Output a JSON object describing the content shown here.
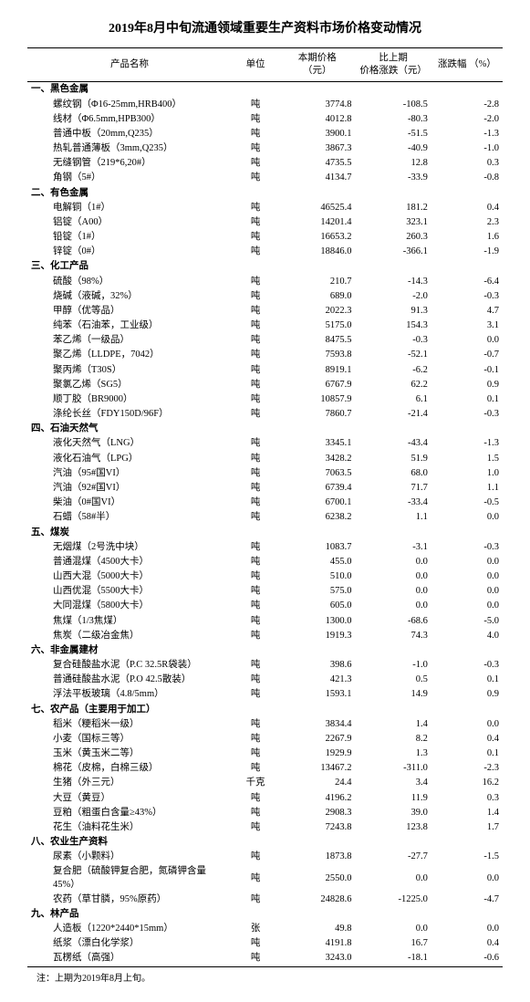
{
  "title": "2019年8月中旬流通领域重要生产资料市场价格变动情况",
  "columns": {
    "name": "产品名称",
    "unit": "单位",
    "price": "本期价格\n（元）",
    "delta": "比上期\n价格涨跌（元）",
    "pct": "涨跌幅 （%）"
  },
  "note": "注：上期为2019年8月上旬。",
  "sections": [
    {
      "header": "一、黑色金属",
      "rows": [
        {
          "name": "螺纹钢（Φ16-25mm,HRB400）",
          "unit": "吨",
          "price": "3774.8",
          "delta": "-108.5",
          "pct": "-2.8"
        },
        {
          "name": "线材（Φ6.5mm,HPB300）",
          "unit": "吨",
          "price": "4012.8",
          "delta": "-80.3",
          "pct": "-2.0"
        },
        {
          "name": "普通中板（20mm,Q235）",
          "unit": "吨",
          "price": "3900.1",
          "delta": "-51.5",
          "pct": "-1.3"
        },
        {
          "name": "热轧普通薄板（3mm,Q235）",
          "unit": "吨",
          "price": "3867.3",
          "delta": "-40.9",
          "pct": "-1.0"
        },
        {
          "name": "无缝钢管（219*6,20#）",
          "unit": "吨",
          "price": "4735.5",
          "delta": "12.8",
          "pct": "0.3"
        },
        {
          "name": "角钢（5#）",
          "unit": "吨",
          "price": "4134.7",
          "delta": "-33.9",
          "pct": "-0.8"
        }
      ]
    },
    {
      "header": "二、有色金属",
      "rows": [
        {
          "name": "电解铜（1#）",
          "unit": "吨",
          "price": "46525.4",
          "delta": "181.2",
          "pct": "0.4"
        },
        {
          "name": "铝锭（A00）",
          "unit": "吨",
          "price": "14201.4",
          "delta": "323.1",
          "pct": "2.3"
        },
        {
          "name": "铅锭（1#）",
          "unit": "吨",
          "price": "16653.2",
          "delta": "260.3",
          "pct": "1.6"
        },
        {
          "name": "锌锭（0#）",
          "unit": "吨",
          "price": "18846.0",
          "delta": "-366.1",
          "pct": "-1.9"
        }
      ]
    },
    {
      "header": "三、化工产品",
      "rows": [
        {
          "name": "硫酸（98%）",
          "unit": "吨",
          "price": "210.7",
          "delta": "-14.3",
          "pct": "-6.4"
        },
        {
          "name": "烧碱（液碱，32%）",
          "unit": "吨",
          "price": "689.0",
          "delta": "-2.0",
          "pct": "-0.3"
        },
        {
          "name": "甲醇（优等品）",
          "unit": "吨",
          "price": "2022.3",
          "delta": "91.3",
          "pct": "4.7"
        },
        {
          "name": "纯苯（石油苯，工业级）",
          "unit": "吨",
          "price": "5175.0",
          "delta": "154.3",
          "pct": "3.1"
        },
        {
          "name": "苯乙烯（一级品）",
          "unit": "吨",
          "price": "8475.5",
          "delta": "-0.3",
          "pct": "0.0"
        },
        {
          "name": "聚乙烯（LLDPE，7042）",
          "unit": "吨",
          "price": "7593.8",
          "delta": "-52.1",
          "pct": "-0.7"
        },
        {
          "name": "聚丙烯（T30S）",
          "unit": "吨",
          "price": "8919.1",
          "delta": "-6.2",
          "pct": "-0.1"
        },
        {
          "name": "聚氯乙烯（SG5）",
          "unit": "吨",
          "price": "6767.9",
          "delta": "62.2",
          "pct": "0.9"
        },
        {
          "name": "顺丁胶（BR9000）",
          "unit": "吨",
          "price": "10857.9",
          "delta": "6.1",
          "pct": "0.1"
        },
        {
          "name": "涤纶长丝（FDY150D/96F）",
          "unit": "吨",
          "price": "7860.7",
          "delta": "-21.4",
          "pct": "-0.3"
        }
      ]
    },
    {
      "header": "四、石油天然气",
      "rows": [
        {
          "name": "液化天然气（LNG）",
          "unit": "吨",
          "price": "3345.1",
          "delta": "-43.4",
          "pct": "-1.3"
        },
        {
          "name": "液化石油气（LPG）",
          "unit": "吨",
          "price": "3428.2",
          "delta": "51.9",
          "pct": "1.5"
        },
        {
          "name": "汽油（95#国VI）",
          "unit": "吨",
          "price": "7063.5",
          "delta": "68.0",
          "pct": "1.0"
        },
        {
          "name": "汽油（92#国VI）",
          "unit": "吨",
          "price": "6739.4",
          "delta": "71.7",
          "pct": "1.1"
        },
        {
          "name": "柴油（0#国VI）",
          "unit": "吨",
          "price": "6700.1",
          "delta": "-33.4",
          "pct": "-0.5"
        },
        {
          "name": "石蜡（58#半）",
          "unit": "吨",
          "price": "6238.2",
          "delta": "1.1",
          "pct": "0.0"
        }
      ]
    },
    {
      "header": "五、煤炭",
      "rows": [
        {
          "name": "无烟煤（2号洗中块）",
          "unit": "吨",
          "price": "1083.7",
          "delta": "-3.1",
          "pct": "-0.3"
        },
        {
          "name": "普通混煤（4500大卡）",
          "unit": "吨",
          "price": "455.0",
          "delta": "0.0",
          "pct": "0.0"
        },
        {
          "name": "山西大混（5000大卡）",
          "unit": "吨",
          "price": "510.0",
          "delta": "0.0",
          "pct": "0.0"
        },
        {
          "name": "山西优混（5500大卡）",
          "unit": "吨",
          "price": "575.0",
          "delta": "0.0",
          "pct": "0.0"
        },
        {
          "name": "大同混煤（5800大卡）",
          "unit": "吨",
          "price": "605.0",
          "delta": "0.0",
          "pct": "0.0"
        },
        {
          "name": "焦煤（1/3焦煤）",
          "unit": "吨",
          "price": "1300.0",
          "delta": "-68.6",
          "pct": "-5.0"
        },
        {
          "name": "焦炭（二级冶金焦）",
          "unit": "吨",
          "price": "1919.3",
          "delta": "74.3",
          "pct": "4.0"
        }
      ]
    },
    {
      "header": "六、非金属建材",
      "rows": [
        {
          "name": "复合硅酸盐水泥（P.C 32.5R袋装）",
          "unit": "吨",
          "price": "398.6",
          "delta": "-1.0",
          "pct": "-0.3"
        },
        {
          "name": "普通硅酸盐水泥（P.O 42.5散装）",
          "unit": "吨",
          "price": "421.3",
          "delta": "0.5",
          "pct": "0.1"
        },
        {
          "name": "浮法平板玻璃（4.8/5mm）",
          "unit": "吨",
          "price": "1593.1",
          "delta": "14.9",
          "pct": "0.9"
        }
      ]
    },
    {
      "header": "七、农产品（主要用于加工）",
      "rows": [
        {
          "name": "稻米（粳稻米一级）",
          "unit": "吨",
          "price": "3834.4",
          "delta": "1.4",
          "pct": "0.0"
        },
        {
          "name": "小麦（国标三等）",
          "unit": "吨",
          "price": "2267.9",
          "delta": "8.2",
          "pct": "0.4"
        },
        {
          "name": "玉米（黄玉米二等）",
          "unit": "吨",
          "price": "1929.9",
          "delta": "1.3",
          "pct": "0.1"
        },
        {
          "name": "棉花（皮棉，白棉三级）",
          "unit": "吨",
          "price": "13467.2",
          "delta": "-311.0",
          "pct": "-2.3"
        },
        {
          "name": "生猪（外三元）",
          "unit": "千克",
          "price": "24.4",
          "delta": "3.4",
          "pct": "16.2"
        },
        {
          "name": "大豆（黄豆）",
          "unit": "吨",
          "price": "4196.2",
          "delta": "11.9",
          "pct": "0.3"
        },
        {
          "name": "豆粕（粗蛋白含量≥43%）",
          "unit": "吨",
          "price": "2908.3",
          "delta": "39.0",
          "pct": "1.4"
        },
        {
          "name": "花生（油料花生米）",
          "unit": "吨",
          "price": "7243.8",
          "delta": "123.8",
          "pct": "1.7"
        }
      ]
    },
    {
      "header": "八、农业生产资料",
      "rows": [
        {
          "name": "尿素（小颗料）",
          "unit": "吨",
          "price": "1873.8",
          "delta": "-27.7",
          "pct": "-1.5"
        },
        {
          "name": "复合肥（硫酸钾复合肥，氮磷钾含量45%）",
          "unit": "吨",
          "price": "2550.0",
          "delta": "0.0",
          "pct": "0.0"
        },
        {
          "name": "农药（草甘膦，95%原药）",
          "unit": "吨",
          "price": "24828.6",
          "delta": "-1225.0",
          "pct": "-4.7"
        }
      ]
    },
    {
      "header": "九、林产品",
      "rows": [
        {
          "name": "人造板（1220*2440*15mm）",
          "unit": "张",
          "price": "49.8",
          "delta": "0.0",
          "pct": "0.0"
        },
        {
          "name": "纸浆（漂白化学浆）",
          "unit": "吨",
          "price": "4191.8",
          "delta": "16.7",
          "pct": "0.4"
        },
        {
          "name": "瓦楞纸（高强）",
          "unit": "吨",
          "price": "3243.0",
          "delta": "-18.1",
          "pct": "-0.6"
        }
      ]
    }
  ]
}
